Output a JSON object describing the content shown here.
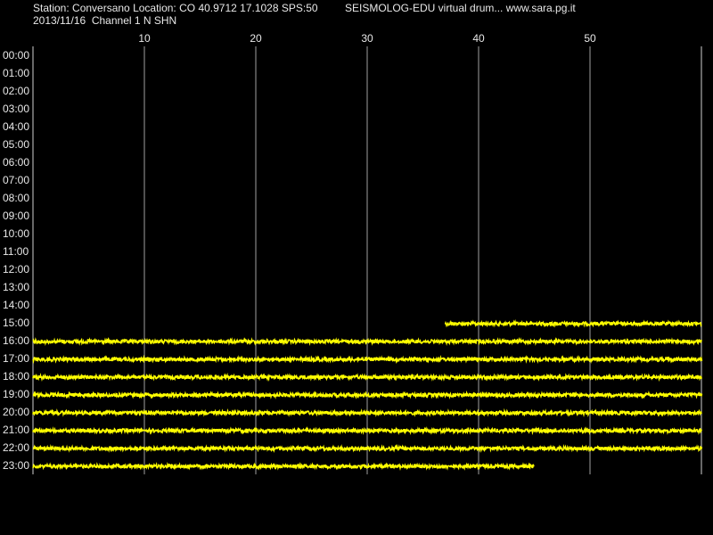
{
  "chart_data": {
    "type": "drum",
    "title": "Station: Conversano Location: CO 40.9712 17.1028 SPS:50",
    "subtitle": "2013/11/16  Channel 1 N SHN",
    "annotation": "SEISMOLOG-EDU virtual drum... www.sara.pg.it",
    "categories": [
      "00:00",
      "01:00",
      "02:00",
      "03:00",
      "04:00",
      "05:00",
      "06:00",
      "07:00",
      "08:00",
      "09:00",
      "10:00",
      "11:00",
      "12:00",
      "13:00",
      "14:00",
      "15:00",
      "16:00",
      "17:00",
      "18:00",
      "19:00",
      "20:00",
      "21:00",
      "22:00",
      "23:00"
    ],
    "trace_start": [
      null,
      null,
      null,
      null,
      null,
      null,
      null,
      null,
      null,
      null,
      null,
      null,
      null,
      null,
      null,
      37,
      0,
      0,
      0,
      0,
      0,
      0,
      0,
      0
    ],
    "trace_end": [
      null,
      null,
      null,
      null,
      null,
      null,
      null,
      null,
      null,
      null,
      null,
      null,
      null,
      null,
      null,
      60,
      60,
      60,
      60,
      60,
      60,
      60,
      60,
      45
    ],
    "xlim": [
      0,
      60
    ],
    "xticks": [
      10,
      20,
      30,
      40,
      50
    ],
    "grid": true,
    "color": "#ffff00"
  }
}
